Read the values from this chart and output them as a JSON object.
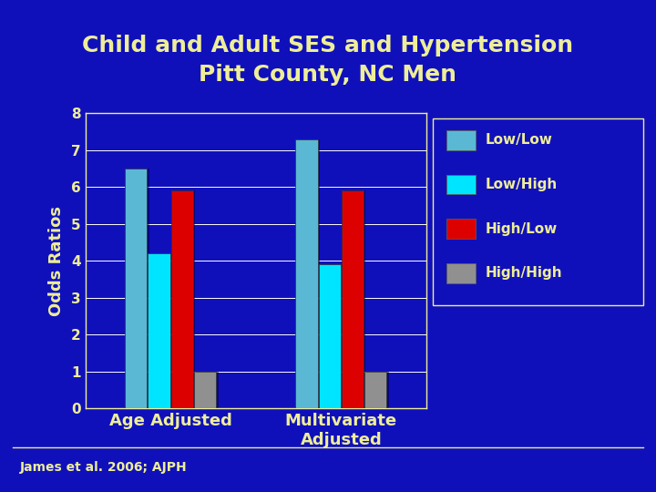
{
  "title_line1": "Child and Adult SES and Hypertension",
  "title_line2": "Pitt County, NC Men",
  "categories": [
    "Age Adjusted",
    "Multivariate\nAdjusted"
  ],
  "series": {
    "Low/Low": [
      6.5,
      7.3
    ],
    "Low/High": [
      4.2,
      3.9
    ],
    "High/Low": [
      5.9,
      5.9
    ],
    "High/High": [
      1.0,
      1.0
    ]
  },
  "colors": {
    "Low/Low": "#5BB8D4",
    "Low/High": "#00E5FF",
    "High/Low": "#DD0000",
    "High/High": "#909090"
  },
  "ylabel": "Odds Ratios",
  "ylim": [
    0,
    8
  ],
  "yticks": [
    0,
    1,
    2,
    3,
    4,
    5,
    6,
    7,
    8
  ],
  "background_color": "#1010BB",
  "plot_bg_color": "#1010BB",
  "text_color": "#EEEE99",
  "grid_color": "#FFFFFF",
  "legend_bg": "#1010BB",
  "legend_text_color": "#EEEE99",
  "footnote": "James et al. 2006; AJPH",
  "title_fontsize": 18,
  "axis_label_fontsize": 13,
  "tick_fontsize": 11,
  "legend_fontsize": 11
}
